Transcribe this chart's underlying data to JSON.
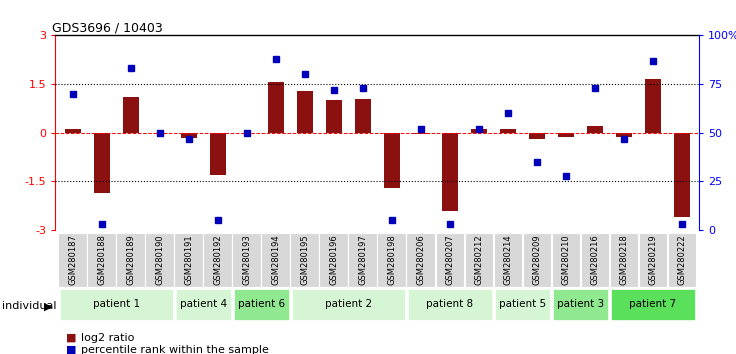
{
  "title": "GDS3696 / 10403",
  "samples": [
    "GSM280187",
    "GSM280188",
    "GSM280189",
    "GSM280190",
    "GSM280191",
    "GSM280192",
    "GSM280193",
    "GSM280194",
    "GSM280195",
    "GSM280196",
    "GSM280197",
    "GSM280198",
    "GSM280206",
    "GSM280207",
    "GSM280212",
    "GSM280214",
    "GSM280209",
    "GSM280210",
    "GSM280216",
    "GSM280218",
    "GSM280219",
    "GSM280222"
  ],
  "log2_ratio": [
    0.12,
    -1.85,
    1.1,
    0.0,
    -0.15,
    -1.3,
    0.0,
    1.55,
    1.3,
    1.0,
    1.05,
    -1.7,
    -0.05,
    -2.4,
    0.12,
    0.12,
    -0.2,
    -0.12,
    0.2,
    -0.12,
    1.65,
    -2.6
  ],
  "percentile": [
    70,
    3,
    83,
    50,
    47,
    5,
    50,
    88,
    80,
    72,
    73,
    5,
    52,
    3,
    52,
    60,
    35,
    28,
    73,
    47,
    87,
    3
  ],
  "patients": [
    {
      "label": "patient 1",
      "start": 0,
      "end": 4,
      "color": "#d5f5d5"
    },
    {
      "label": "patient 4",
      "start": 4,
      "end": 6,
      "color": "#d5f5d5"
    },
    {
      "label": "patient 6",
      "start": 6,
      "end": 8,
      "color": "#90e890"
    },
    {
      "label": "patient 2",
      "start": 8,
      "end": 12,
      "color": "#d5f5d5"
    },
    {
      "label": "patient 8",
      "start": 12,
      "end": 15,
      "color": "#d5f5d5"
    },
    {
      "label": "patient 5",
      "start": 15,
      "end": 17,
      "color": "#d5f5d5"
    },
    {
      "label": "patient 3",
      "start": 17,
      "end": 19,
      "color": "#90e890"
    },
    {
      "label": "patient 7",
      "start": 19,
      "end": 22,
      "color": "#5ae05a"
    }
  ],
  "bar_color": "#8b1010",
  "dot_color": "#0000bb",
  "ylim_left": [
    -3,
    3
  ],
  "ylim_right": [
    0,
    100
  ],
  "yticks_left": [
    -3,
    -1.5,
    0,
    1.5,
    3
  ],
  "yticks_right": [
    0,
    25,
    50,
    75,
    100
  ]
}
